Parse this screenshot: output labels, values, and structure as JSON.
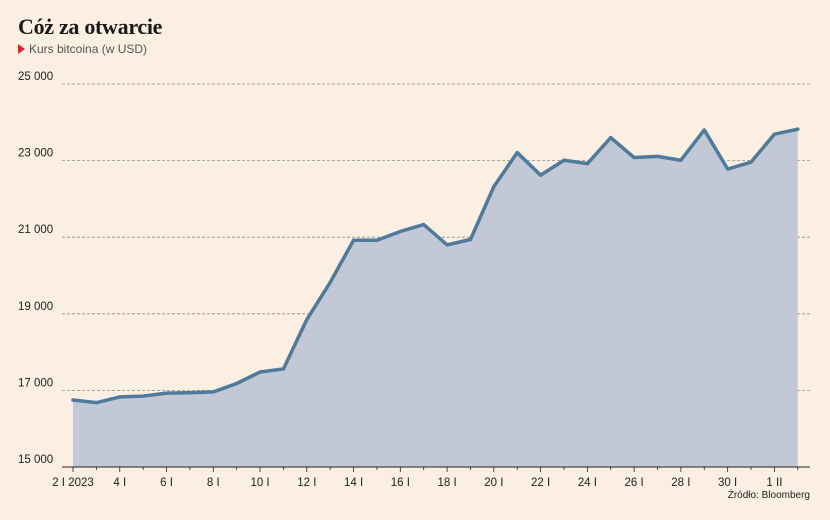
{
  "header": {
    "title": "Cóż za otwarcie",
    "subtitle": "Kurs bitcoina (w USD)"
  },
  "footer": {
    "source": "Źródło: Bloomberg"
  },
  "colors": {
    "line": "#4f7a99",
    "area": "#c2c8d6",
    "marker": "#d8262b"
  },
  "chart_data": {
    "type": "area",
    "title": "Cóż za otwarcie",
    "subtitle": "Kurs bitcoina (w USD)",
    "xlabel": "",
    "ylabel": "",
    "ylim": [
      15000,
      25000
    ],
    "y_ticks": [
      15000,
      17000,
      19000,
      21000,
      23000,
      25000
    ],
    "y_tick_labels": [
      "15 000",
      "17 000",
      "19 000",
      "21 000",
      "23 000",
      "25 000"
    ],
    "x_ticks": [
      "2 I 2023",
      "4 I",
      "6 I",
      "8 I",
      "10 I",
      "12 I",
      "14 I",
      "16 I",
      "18 I",
      "20 I",
      "22 I",
      "24 I",
      "26 I",
      "28 I",
      "30 I",
      "1 II"
    ],
    "grid": true,
    "series": [
      {
        "x": [
          "2 I",
          "3 I",
          "4 I",
          "5 I",
          "6 I",
          "7 I",
          "8 I",
          "9 I",
          "10 I",
          "11 I",
          "12 I",
          "13 I",
          "14 I",
          "15 I",
          "16 I",
          "17 I",
          "18 I",
          "19 I",
          "20 I",
          "21 I",
          "22 I",
          "23 I",
          "24 I",
          "25 I",
          "26 I",
          "27 I",
          "28 I",
          "29 I",
          "30 I",
          "31 I",
          "1 II",
          "2 II"
        ],
        "values": [
          16750,
          16680,
          16830,
          16850,
          16930,
          16940,
          16960,
          17180,
          17480,
          17560,
          18850,
          19820,
          20920,
          20920,
          21150,
          21330,
          20800,
          20940,
          22320,
          23210,
          22620,
          23010,
          22920,
          23600,
          23080,
          23110,
          23010,
          23800,
          22780,
          22960,
          23690,
          23820
        ]
      }
    ]
  }
}
